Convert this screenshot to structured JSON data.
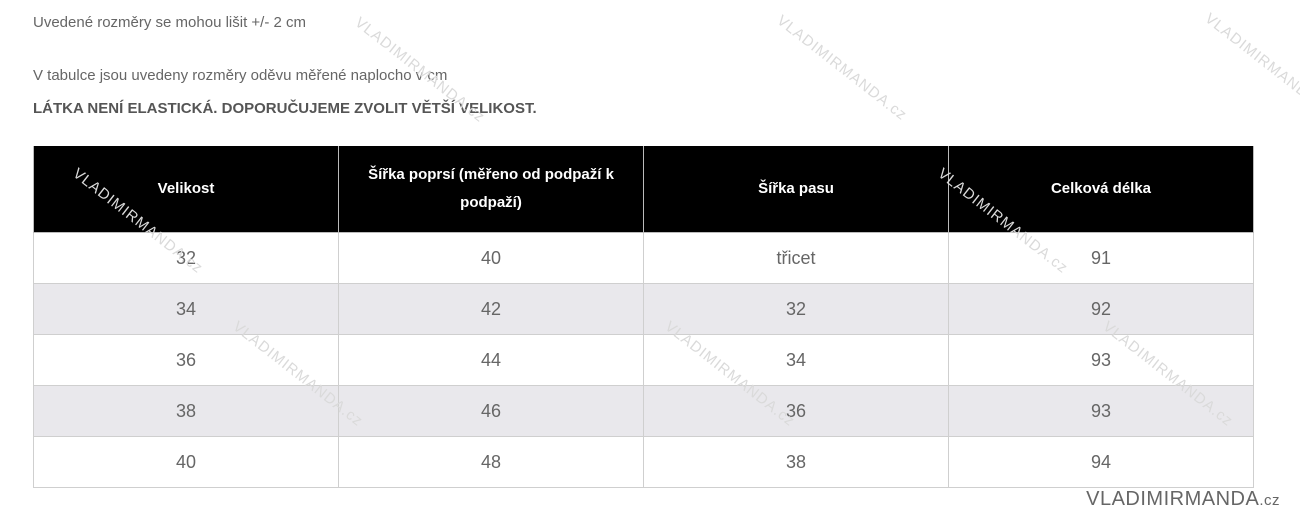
{
  "notes": {
    "tolerance": "Uvedené rozměry se mohou lišit +/- 2 cm",
    "measured": "V tabulce jsou uvedeny rozměry oděvu měřené naplocho v cm",
    "warning": "LÁTKA NENÍ ELASTICKÁ. DOPORUČUJEME ZVOLIT VĚTŠÍ VELIKOST."
  },
  "table": {
    "headers": [
      "Velikost",
      "Šířka poprsí (měřeno od podpaží k podpaží)",
      "Šířka pasu",
      "Celková délka"
    ],
    "rows": [
      [
        "32",
        "40",
        "třicet",
        "91"
      ],
      [
        "34",
        "42",
        "32",
        "92"
      ],
      [
        "36",
        "44",
        "34",
        "93"
      ],
      [
        "38",
        "46",
        "36",
        "93"
      ],
      [
        "40",
        "48",
        "38",
        "94"
      ]
    ]
  },
  "brand": {
    "name": "VLADIMIRMANDA",
    "tld": ".cz"
  }
}
